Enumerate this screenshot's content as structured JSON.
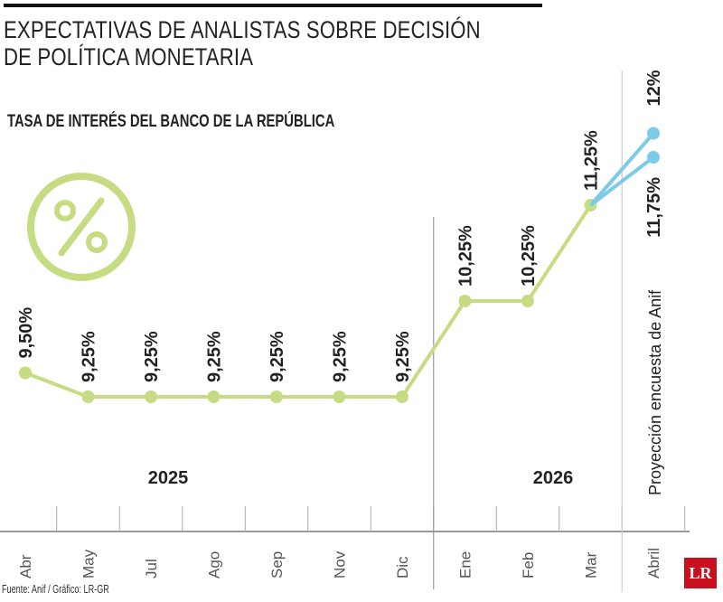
{
  "title_lines": [
    "EXPECTATIVAS DE ANALISTAS SOBRE DECISIÓN",
    "DE POLÍTICA MONETARIA"
  ],
  "subtitle": "TASA DE INTERÉS DEL BANCO DE LA REPÚBLICA",
  "source": "Fuente: Anif / Gráfico: LR-GR",
  "logo": "LR",
  "icon": "percent-icon",
  "colors": {
    "actual": "#c5dc82",
    "projection": "#7ccbe8",
    "text": "#222222"
  },
  "chart_data": {
    "type": "line",
    "categories": [
      "Abr",
      "May",
      "Jul",
      "Ago",
      "Sep",
      "Nov",
      "Dic",
      "Ene",
      "Feb",
      "Mar",
      "Abril"
    ],
    "years": [
      {
        "label": "2025",
        "from": "Abr",
        "to": "Dic"
      },
      {
        "label": "2026",
        "from": "Ene",
        "to": "Mar"
      }
    ],
    "series": [
      {
        "values": [
          9.5,
          9.25,
          9.25,
          9.25,
          9.25,
          9.25,
          9.25,
          10.25,
          10.25,
          11.25,
          null
        ],
        "labels": [
          "9,50%",
          "9,25%",
          "9,25%",
          "9,25%",
          "9,25%",
          "9,25%",
          "9,25%",
          "10,25%",
          "10,25%",
          "11,25%",
          null
        ]
      },
      {
        "values": [
          null,
          null,
          null,
          null,
          null,
          null,
          null,
          null,
          null,
          11.25,
          12
        ],
        "labels": [
          null,
          null,
          null,
          null,
          null,
          null,
          null,
          null,
          null,
          null,
          "12%"
        ]
      },
      {
        "values": [
          null,
          null,
          null,
          null,
          null,
          null,
          null,
          null,
          null,
          11.25,
          11.75
        ],
        "labels": [
          null,
          null,
          null,
          null,
          null,
          null,
          null,
          null,
          null,
          null,
          "11,75%"
        ]
      }
    ],
    "projection_label": "Proyección encuesta de Anif",
    "grid": false
  }
}
